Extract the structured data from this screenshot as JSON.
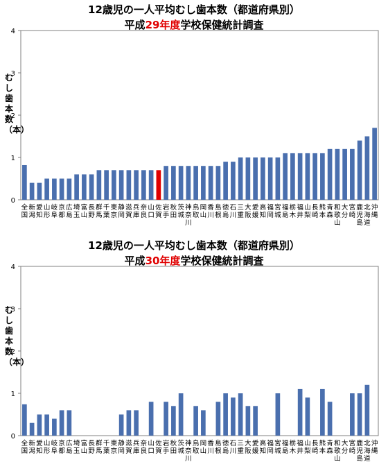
{
  "chart_data": [
    {
      "type": "bar",
      "title": "12歳児の一人平均むし歯本数（都道府県別）",
      "subtitle_prefix": "平成",
      "subtitle_highlight": "29年度",
      "subtitle_suffix": "学校保健統計調査",
      "ylabel": "むし歯本数（本）",
      "ylim": [
        0,
        4
      ],
      "yticks": [
        "0",
        "1",
        "2",
        "3",
        "4"
      ],
      "categories": [
        "全国",
        "新潟",
        "愛知",
        "山形",
        "岐阜",
        "京都",
        "広島",
        "埼玉",
        "富山",
        "長野",
        "群馬",
        "千葉",
        "東京",
        "静岡",
        "滋賀",
        "兵庫",
        "奈良",
        "山口",
        "佐賀",
        "岩手",
        "秋田",
        "茨城",
        "神奈川",
        "鳥取",
        "岡山",
        "香川",
        "島根",
        "徳島",
        "石川",
        "三重",
        "大阪",
        "愛媛",
        "高知",
        "福岡",
        "宮城",
        "福島",
        "栃木",
        "福井",
        "山梨",
        "長崎",
        "熊本",
        "青森",
        "和歌山",
        "大分",
        "宮崎",
        "鹿児島",
        "北海道",
        "沖縄"
      ],
      "values": [
        0.82,
        0.4,
        0.4,
        0.5,
        0.5,
        0.5,
        0.5,
        0.6,
        0.6,
        0.6,
        0.7,
        0.7,
        0.7,
        0.7,
        0.7,
        0.7,
        0.7,
        0.7,
        0.7,
        0.8,
        0.8,
        0.8,
        0.8,
        0.8,
        0.8,
        0.8,
        0.8,
        0.9,
        0.9,
        1.0,
        1.0,
        1.0,
        1.0,
        1.0,
        1.0,
        1.1,
        1.1,
        1.1,
        1.1,
        1.1,
        1.1,
        1.2,
        1.2,
        1.2,
        1.2,
        1.4,
        1.5,
        1.7
      ],
      "bar_color": "#4a6fae",
      "highlight_color": "#e00000",
      "highlight_category": "佐賀"
    },
    {
      "type": "bar",
      "title": "12歳児の一人平均むし歯本数（都道府県別）",
      "subtitle_prefix": "平成",
      "subtitle_highlight": "30年度",
      "subtitle_suffix": "学校保健統計調査",
      "ylabel": "むし歯本数（本）",
      "ylim": [
        0,
        4
      ],
      "yticks": [
        "0",
        "1",
        "2",
        "3",
        "4"
      ],
      "categories": [
        "全国",
        "新潟",
        "愛知",
        "山形",
        "岐阜",
        "京都",
        "広島",
        "埼玉",
        "富山",
        "長野",
        "群馬",
        "千葉",
        "東京",
        "静岡",
        "滋賀",
        "兵庫",
        "奈良",
        "山口",
        "佐賀",
        "岩手",
        "秋田",
        "茨城",
        "神奈川",
        "鳥取",
        "岡山",
        "香川",
        "島根",
        "徳島",
        "石川",
        "三重",
        "大阪",
        "愛媛",
        "高知",
        "福岡",
        "宮城",
        "福島",
        "栃木",
        "福井",
        "山梨",
        "長崎",
        "熊本",
        "青森",
        "和歌山",
        "大分",
        "宮崎",
        "鹿児島",
        "北海道",
        "沖縄"
      ],
      "values": [
        0.74,
        0.3,
        0.5,
        0.5,
        0.4,
        0.6,
        0.6,
        0,
        0,
        0,
        0,
        0,
        0,
        0.5,
        0.6,
        0.6,
        0,
        0.8,
        0,
        0.8,
        0.7,
        1.0,
        0,
        0.7,
        0.6,
        0,
        0.8,
        1.0,
        0.9,
        1.0,
        0.7,
        0.7,
        0,
        0,
        1.0,
        0,
        0,
        1.1,
        0.9,
        0,
        1.1,
        0.8,
        0,
        0,
        1.0,
        1.0,
        1.2,
        0
      ],
      "bar_color": "#4a6fae"
    }
  ]
}
